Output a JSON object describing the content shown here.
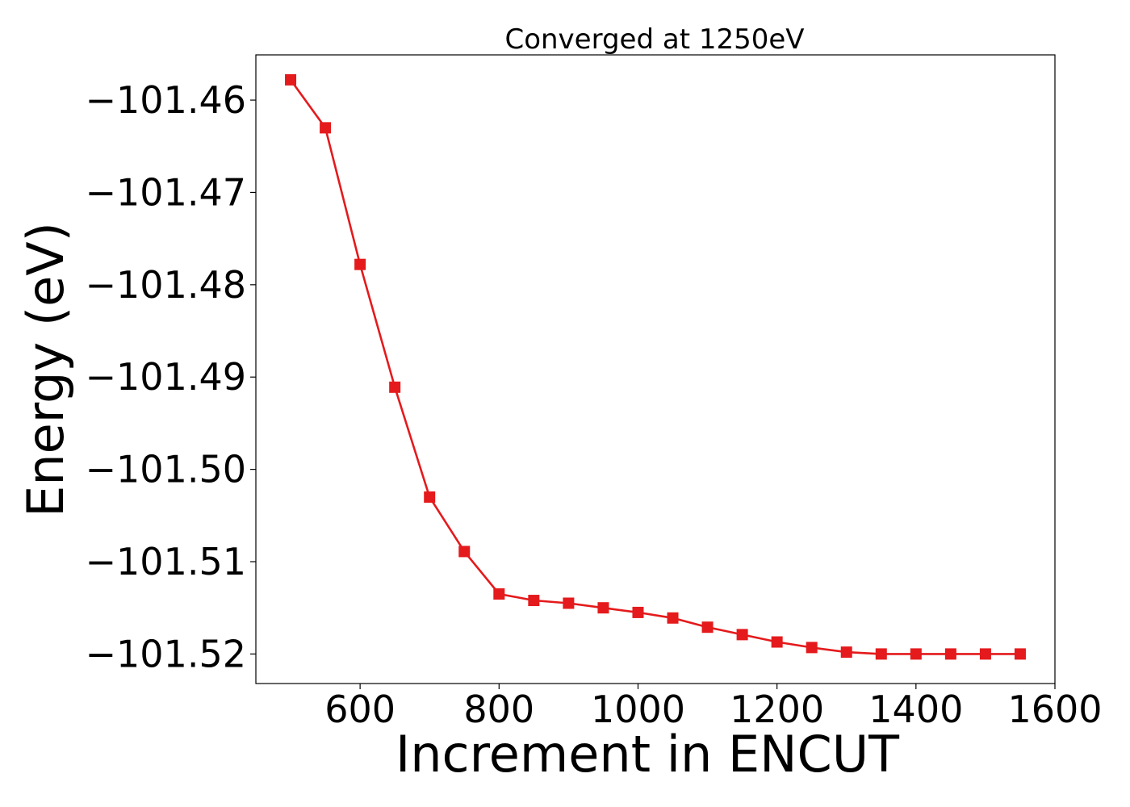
{
  "chart_data": {
    "type": "line",
    "title": "Converged at 1250eV",
    "xlabel": "Increment in ENCUT",
    "ylabel": "Energy (eV)",
    "xlim": [
      450,
      1600
    ],
    "ylim": [
      -101.5232,
      -101.4551
    ],
    "xticks": [
      600,
      800,
      1000,
      1200,
      1400,
      1600
    ],
    "xtick_labels": [
      "600",
      "800",
      "1000",
      "1200",
      "1400",
      "1600"
    ],
    "yticks": [
      -101.46,
      -101.47,
      -101.48,
      -101.49,
      -101.5,
      -101.51,
      -101.52
    ],
    "ytick_labels": [
      "−101.46",
      "−101.47",
      "−101.48",
      "−101.49",
      "−101.50",
      "−101.51",
      "−101.52"
    ],
    "grid": false,
    "series": [
      {
        "color": "#e41a1c",
        "marker": "square",
        "x": [
          500,
          550,
          600,
          650,
          700,
          750,
          800,
          850,
          900,
          950,
          1000,
          1050,
          1100,
          1150,
          1200,
          1250,
          1300,
          1350,
          1400,
          1450,
          1500,
          1550
        ],
        "y": [
          -101.4578,
          -101.463,
          -101.4778,
          -101.4911,
          -101.503,
          -101.5089,
          -101.5135,
          -101.5142,
          -101.5145,
          -101.515,
          -101.5155,
          -101.5161,
          -101.5171,
          -101.5179,
          -101.5187,
          -101.5193,
          -101.5198,
          -101.52,
          -101.52,
          -101.52,
          -101.52,
          -101.52
        ]
      }
    ]
  }
}
